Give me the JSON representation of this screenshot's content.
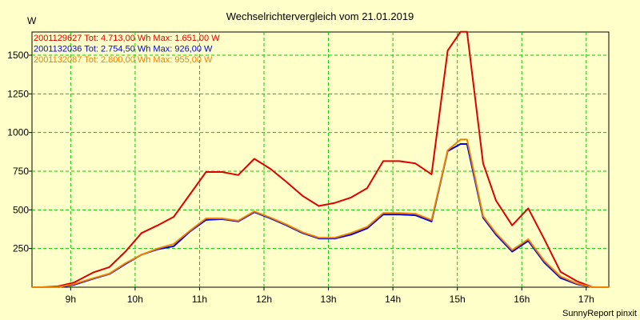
{
  "chart_data": {
    "type": "line",
    "title": "Wechselrichtervergleich vom 21.01.2019",
    "ylabel": "W",
    "credit": "SunnyReport pinxit",
    "ylim": [
      0,
      1650
    ],
    "xlim": [
      8.4,
      17.35
    ],
    "yticks": [
      250,
      500,
      750,
      1000,
      1250,
      1500
    ],
    "xticks": [
      {
        "value": 9,
        "label": "9h"
      },
      {
        "value": 10,
        "label": "10h"
      },
      {
        "value": 11,
        "label": "11h"
      },
      {
        "value": 12,
        "label": "12h"
      },
      {
        "value": 13,
        "label": "13h"
      },
      {
        "value": 14,
        "label": "14h"
      },
      {
        "value": 15,
        "label": "15h"
      },
      {
        "value": 16,
        "label": "16h"
      },
      {
        "value": 17,
        "label": "17h"
      }
    ],
    "grid": true,
    "legend_position": "top-left",
    "x": [
      8.4,
      8.55,
      8.8,
      9.05,
      9.35,
      9.6,
      9.85,
      10.1,
      10.35,
      10.6,
      10.85,
      11.1,
      11.35,
      11.6,
      11.85,
      12.1,
      12.35,
      12.6,
      12.85,
      13.1,
      13.35,
      13.6,
      13.85,
      14.1,
      14.35,
      14.6,
      14.85,
      15.05,
      15.15,
      15.4,
      15.6,
      15.85,
      16.1,
      16.35,
      16.6,
      16.85,
      17.1,
      17.35
    ],
    "series": [
      {
        "name": "2001129627 Tot: 4.713,00 Wh Max: 1.651,00 W",
        "color": "#E00000",
        "values": [
          0,
          0,
          5,
          30,
          95,
          130,
          230,
          350,
          400,
          455,
          600,
          745,
          745,
          725,
          830,
          765,
          680,
          590,
          525,
          545,
          580,
          640,
          815,
          815,
          800,
          730,
          1530,
          1651,
          1651,
          800,
          560,
          400,
          510,
          310,
          100,
          40,
          0,
          0
        ]
      },
      {
        "name": "2001132036 Tot: 2.754,50 Wh Max: 926,00 W",
        "color": "#0000E0",
        "values": [
          0,
          0,
          0,
          15,
          55,
          85,
          150,
          210,
          245,
          265,
          360,
          435,
          440,
          425,
          485,
          445,
          400,
          350,
          315,
          315,
          340,
          380,
          470,
          470,
          465,
          425,
          880,
          926,
          926,
          450,
          340,
          230,
          300,
          160,
          60,
          20,
          0,
          0
        ]
      },
      {
        "name": "2001132087 Tot: 2.800,00 Wh Max: 955,00 W",
        "color": "#F08000",
        "values": [
          0,
          0,
          0,
          20,
          58,
          88,
          155,
          210,
          250,
          280,
          365,
          445,
          445,
          430,
          490,
          450,
          405,
          355,
          320,
          320,
          350,
          390,
          480,
          480,
          475,
          435,
          885,
          955,
          955,
          460,
          350,
          240,
          310,
          170,
          70,
          25,
          0,
          0
        ]
      }
    ]
  }
}
